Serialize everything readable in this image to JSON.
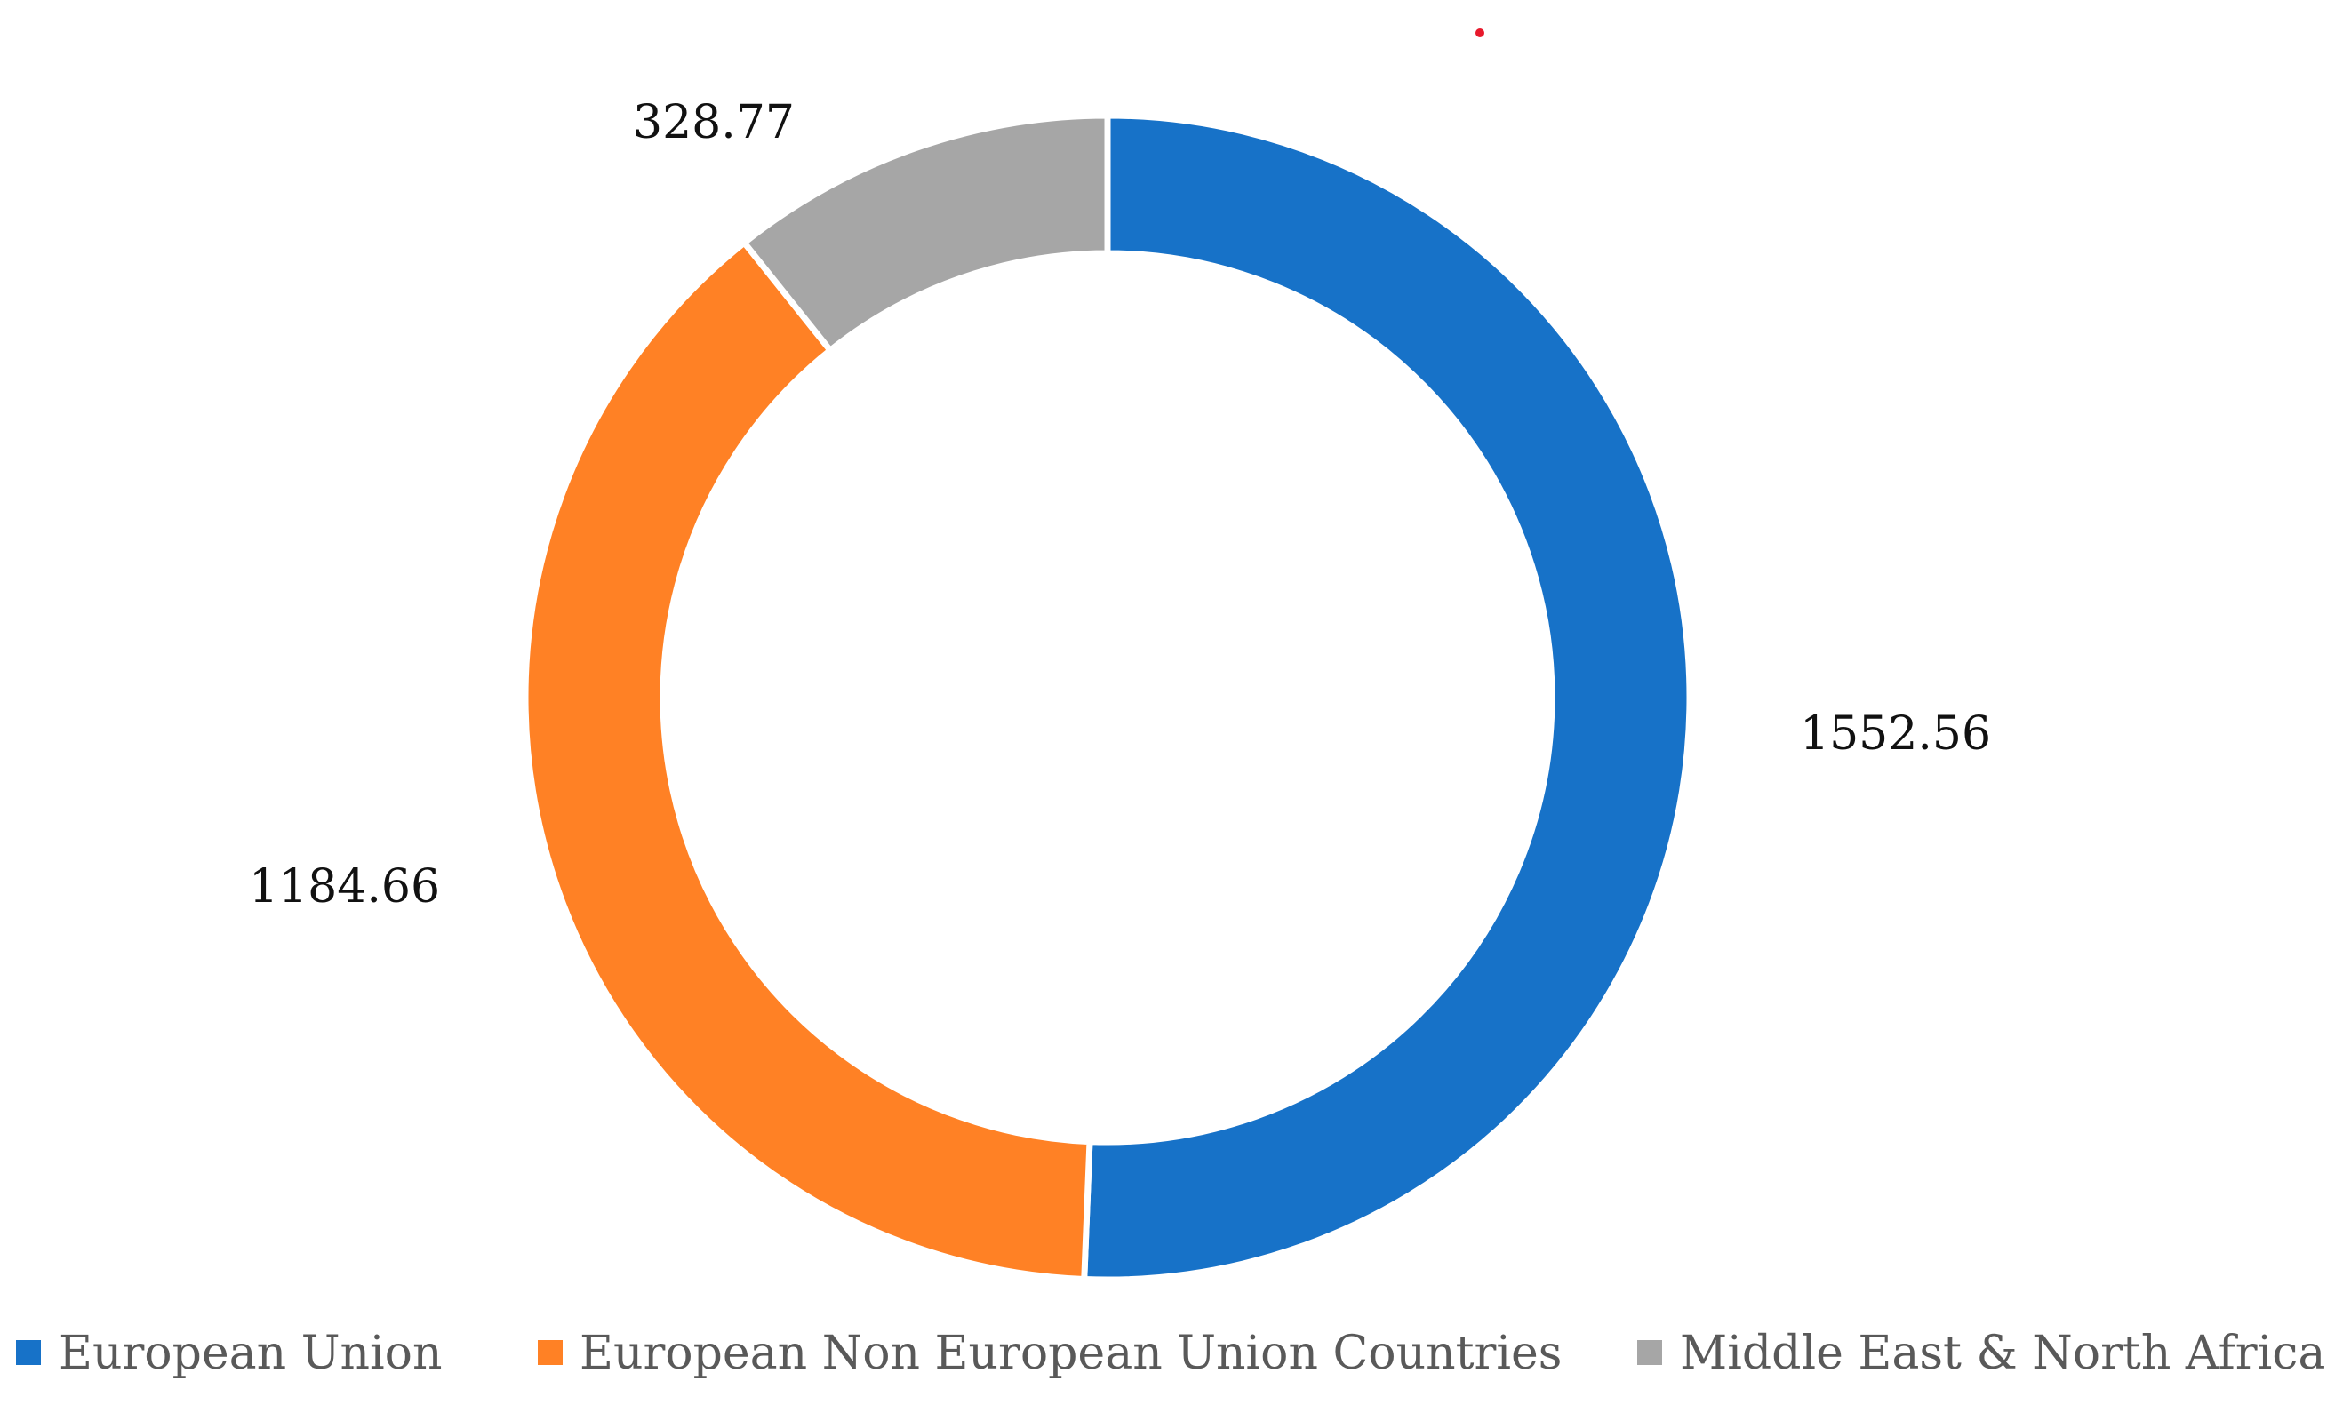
{
  "chart_data": {
    "type": "pie",
    "subtype": "doughnut",
    "title": "",
    "categories": [
      "European Union",
      "European Non European Union Countries",
      "Middle East & North Africa"
    ],
    "values": [
      1552.56,
      1184.66,
      328.77
    ],
    "value_labels": [
      "1552.56",
      "1184.66",
      "328.77"
    ],
    "colors": [
      "#1772C8",
      "#FF8125",
      "#A6A6A6"
    ],
    "legend": {
      "position": "bottom",
      "entries": [
        "European Union",
        "European Non European Union Countries",
        "Middle East & North Africa"
      ]
    }
  }
}
